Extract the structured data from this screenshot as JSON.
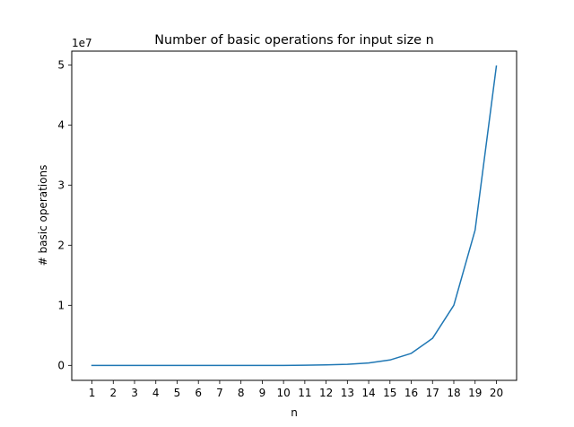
{
  "chart_data": {
    "type": "line",
    "title": "Number of basic operations for input size n",
    "xlabel": "n",
    "ylabel": "# basic operations",
    "y_offset_label": "1e7",
    "x": [
      1,
      2,
      3,
      4,
      5,
      6,
      7,
      8,
      9,
      10,
      11,
      12,
      13,
      14,
      15,
      16,
      17,
      18,
      19,
      20
    ],
    "series": [
      {
        "color": "#1f77b4",
        "values": [
          0,
          0,
          0,
          0,
          0,
          0,
          0,
          0,
          0,
          0,
          30000,
          80000,
          180000,
          400000,
          900000,
          2000000,
          4500000,
          10000000,
          22500000,
          49800000
        ]
      }
    ],
    "xticks": [
      "1",
      "2",
      "3",
      "4",
      "5",
      "6",
      "7",
      "8",
      "9",
      "10",
      "11",
      "12",
      "13",
      "14",
      "15",
      "16",
      "17",
      "18",
      "19",
      "20"
    ],
    "yticks": [
      0,
      1,
      2,
      3,
      4,
      5
    ],
    "ytick_scale": 10000000,
    "xlim": [
      0.05,
      20.95
    ],
    "ylim": [
      -2490000,
      52290000
    ],
    "grid": false,
    "legend": "none"
  }
}
